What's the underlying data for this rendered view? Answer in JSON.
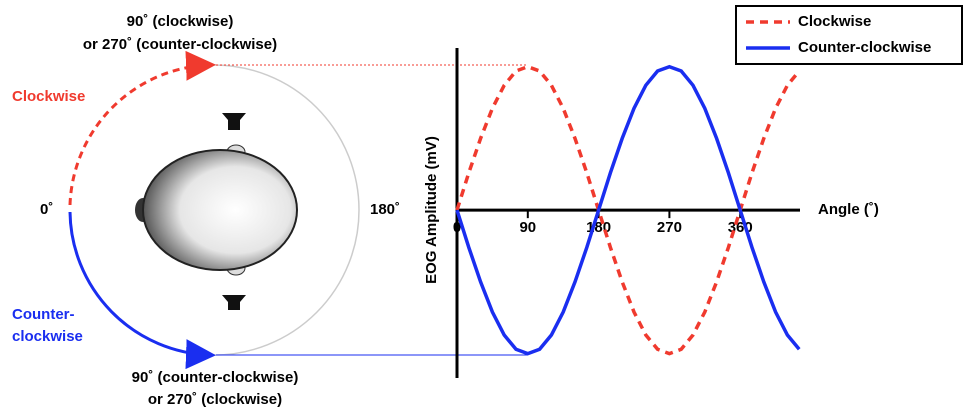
{
  "diagram": {
    "top_label": [
      "90˚ (clockwise)",
      "or 270˚ (counter-clockwise)"
    ],
    "bottom_label": [
      "90˚ (counter-clockwise)",
      "or 270˚ (clockwise)"
    ],
    "left_angle": "0˚",
    "right_angle": "180˚",
    "clockwise_label": "Clockwise",
    "counter_label": [
      "Counter-",
      "clockwise"
    ]
  },
  "chart_data": {
    "type": "line",
    "x_label": "Angle (˚)",
    "y_label": "EOG Amplitude (mV)",
    "x": [
      0,
      15,
      30,
      45,
      60,
      75,
      90,
      105,
      120,
      135,
      150,
      165,
      180,
      195,
      210,
      225,
      240,
      255,
      270,
      285,
      300,
      315,
      330,
      345,
      360,
      375,
      390,
      405,
      420,
      435
    ],
    "series": [
      {
        "name": "Clockwise",
        "color": "#f03a2e",
        "dash": true,
        "values": [
          0,
          0.26,
          0.5,
          0.71,
          0.87,
          0.97,
          1,
          0.97,
          0.87,
          0.71,
          0.5,
          0.26,
          0,
          -0.26,
          -0.5,
          -0.71,
          -0.87,
          -0.97,
          -1,
          -0.97,
          -0.87,
          -0.71,
          -0.5,
          -0.26,
          0,
          0.26,
          0.5,
          0.71,
          0.87,
          0.97
        ]
      },
      {
        "name": "Counter-clockwise",
        "color": "#1a2ef0",
        "dash": false,
        "values": [
          0,
          -0.26,
          -0.5,
          -0.71,
          -0.87,
          -0.97,
          -1,
          -0.97,
          -0.87,
          -0.71,
          -0.5,
          -0.26,
          0,
          0.26,
          0.5,
          0.71,
          0.87,
          0.97,
          1,
          0.97,
          0.87,
          0.71,
          0.5,
          0.26,
          0,
          -0.26,
          -0.5,
          -0.71,
          -0.87,
          -0.97
        ]
      }
    ],
    "xlim": [
      0,
      436
    ],
    "xticks": [
      0,
      90,
      180,
      270,
      360
    ],
    "ylim": [
      -1.17,
      1.13
    ]
  }
}
